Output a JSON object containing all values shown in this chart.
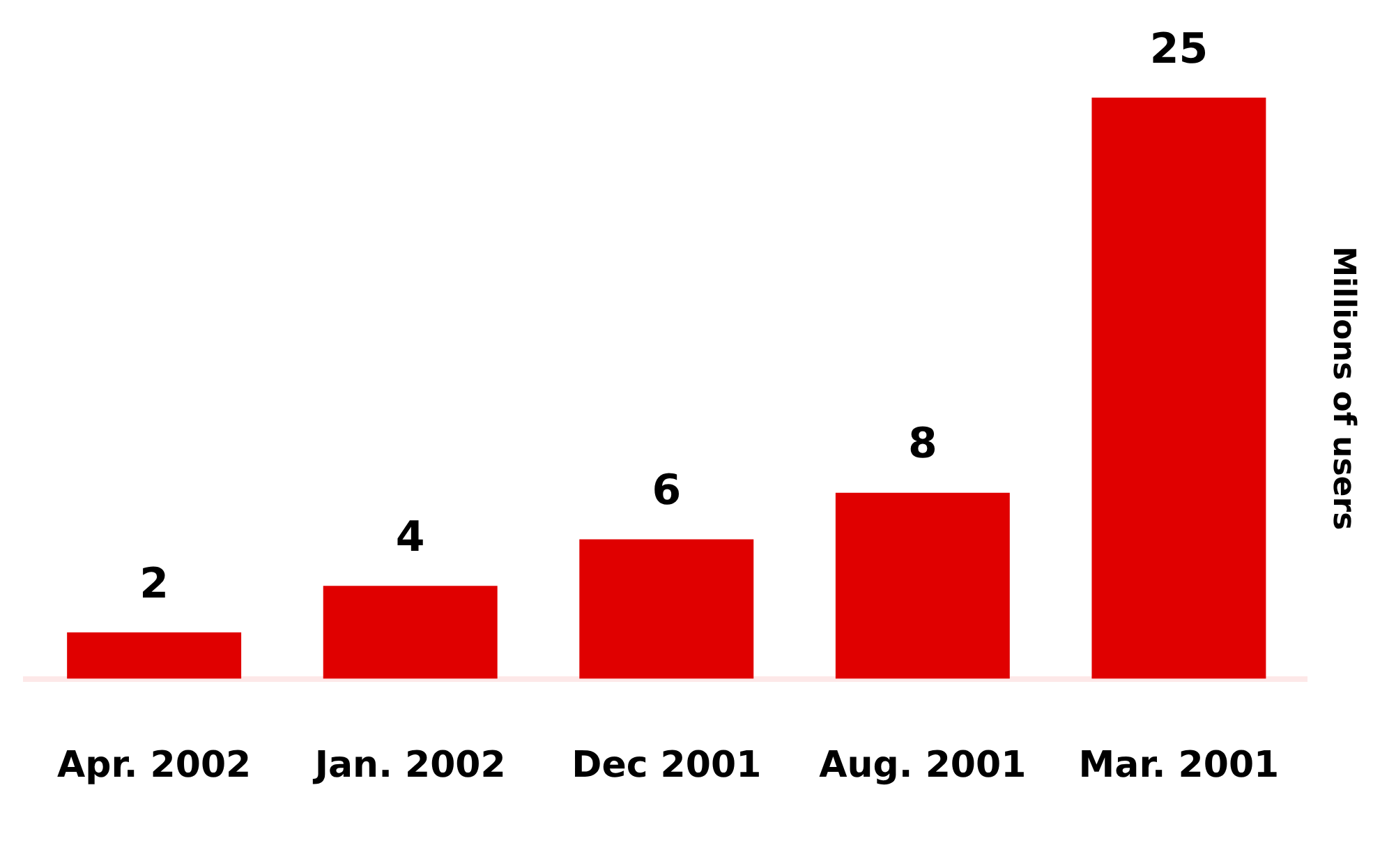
{
  "chart_data": {
    "type": "bar",
    "ylabel": "Millions of users",
    "categories": [
      "Apr. 2002",
      "Jan. 2002",
      "Dec 2001",
      "Aug. 2001",
      "Mar. 2001"
    ],
    "values": [
      2,
      4,
      6,
      8,
      25
    ],
    "color": "#e00000",
    "data_labels": true,
    "grid": false,
    "legend": false
  }
}
